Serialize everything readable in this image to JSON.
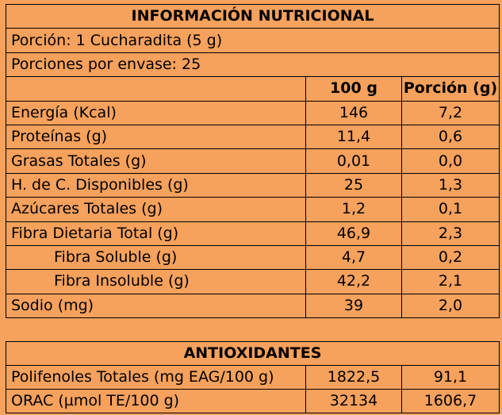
{
  "nutrition": {
    "title": "INFORMACIÓN NUTRICIONAL",
    "serving": "Porción: 1 Cucharadita (5 g)",
    "servings_per_container": "Porciones por envase: 25",
    "col_100g": "100 g",
    "col_portion": "Porción (g)",
    "rows": [
      {
        "label": "Energía (Kcal)",
        "per100": "146",
        "portion": "7,2"
      },
      {
        "label": "Proteínas (g)",
        "per100": "11,4",
        "portion": "0,6"
      },
      {
        "label": "Grasas Totales (g)",
        "per100": "0,01",
        "portion": "0,0"
      },
      {
        "label": "H. de C. Disponibles (g)",
        "per100": "25",
        "portion": "1,3"
      },
      {
        "label": "Azúcares Totales (g)",
        "per100": "1,2",
        "portion": "0,1"
      },
      {
        "label": "Fibra Dietaria Total (g)",
        "per100": "46,9",
        "portion": "2,3"
      },
      {
        "label": "Fibra Soluble (g)",
        "per100": "4,7",
        "portion": "0,2"
      },
      {
        "label": "Fibra Insoluble (g)",
        "per100": "42,2",
        "portion": "2,1"
      },
      {
        "label": "Sodio (mg)",
        "per100": "39",
        "portion": "2,0"
      }
    ]
  },
  "antioxidants": {
    "title": "ANTIOXIDANTES",
    "rows": [
      {
        "label": "Polifenoles Totales (mg EAG/100 g)",
        "value1": "1822,5",
        "value2": "91,1"
      },
      {
        "label": "ORAC (µmol TE/100 g)",
        "value1": "32134",
        "value2": "1606,7"
      }
    ]
  }
}
